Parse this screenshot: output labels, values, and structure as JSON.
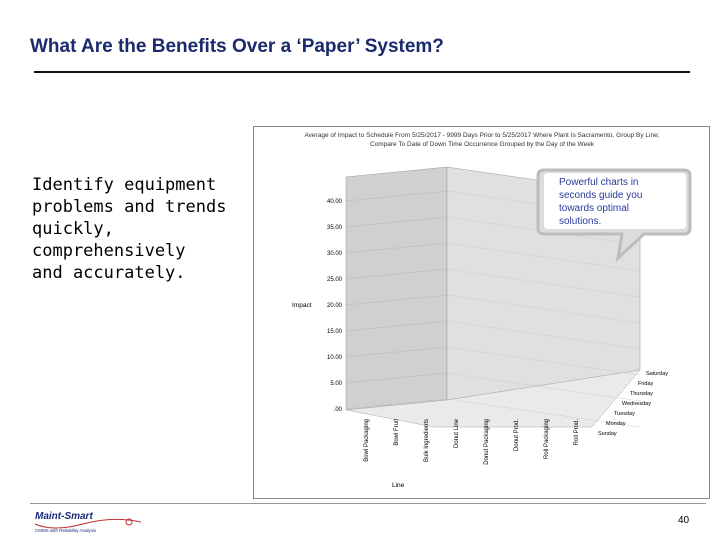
{
  "slide": {
    "title": "What Are the Benefits Over a ‘Paper’ System?",
    "body": "Identify equipment\nproblems and trends\nquickly,\ncomprehensively\nand accurately.",
    "page_number": "40"
  },
  "logo": {
    "name": "Maint-Smart",
    "tagline": "CMMS with Reliability Analysis"
  },
  "callout": {
    "text_lines": [
      "Powerful charts in",
      "seconds guide you",
      "towards optimal",
      "solutions."
    ]
  },
  "chart_data": {
    "type": "bar",
    "title_lines": [
      "Average of Impact to Schedule From 5/25/2017 - 9999 Days Prior to 5/25/2017 Where Plant Is Sacramento, Group By Line;",
      "Compare To Date of Down Time Occurrence Grouped by the Day of the Week"
    ],
    "ylabel": "Impact",
    "xlabel": "Line",
    "ylim": [
      0,
      40
    ],
    "yticks": [
      "40.00",
      "35.00",
      "30.00",
      "25.00",
      "20.00",
      "15.00",
      "10.00",
      "5.00",
      ".00"
    ],
    "categories": [
      "Bowl Packaging",
      "Bowl Fruit",
      "Bulk Ingredients",
      "Donut Line",
      "Donut Packaging",
      "Donut Prod.",
      "Roll Packaging",
      "Roll Prod."
    ],
    "series": [
      {
        "name": "Saturday",
        "color": "#2f6fb5",
        "values": [
          0,
          0,
          0,
          0,
          0,
          0,
          0,
          0
        ]
      },
      {
        "name": "Friday",
        "color": "#6b1f5a",
        "values": [
          0,
          0,
          0,
          0,
          0,
          0,
          0,
          0
        ]
      },
      {
        "name": "Thursday",
        "color": "#c8f0f8",
        "values": [
          0,
          0,
          0,
          0,
          0,
          0,
          0,
          0
        ]
      },
      {
        "name": "Wednesday",
        "color": "#fff8c8",
        "values": [
          0,
          0,
          0,
          0,
          0,
          0,
          0,
          0
        ]
      },
      {
        "name": "Tuesday",
        "color": "#7a1f4a",
        "values": [
          0,
          0,
          0,
          0,
          0,
          0,
          0,
          0
        ]
      },
      {
        "name": "Monday",
        "color": "#7f7fe8",
        "values": [
          0,
          0,
          0,
          0,
          0,
          0,
          0,
          0
        ]
      },
      {
        "name": "Sunday",
        "color": "#a0a0f0",
        "values": [
          0,
          0,
          0,
          0,
          0,
          0,
          0,
          0
        ]
      }
    ],
    "legend": "right",
    "grid": true
  }
}
